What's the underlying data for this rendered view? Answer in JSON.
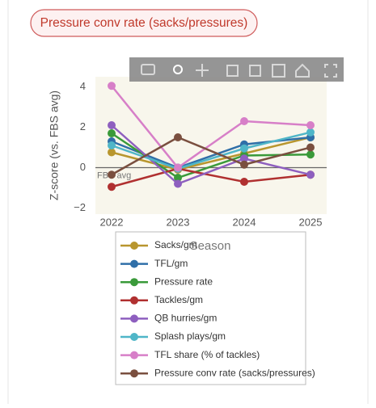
{
  "filter_button": {
    "label": "Pressure conv rate (sacks/pressures)"
  },
  "chart_data": {
    "type": "line",
    "y_label": "Z-score (vs. FBS avg)",
    "x_label": "Season",
    "annotation": "FBS avg",
    "categories": [
      "2022",
      "2023",
      "2024",
      "2025"
    ],
    "ylim": [
      -2.3,
      4.5
    ],
    "yticks": [
      {
        "value": -2,
        "label": "−2"
      },
      0,
      2,
      4
    ],
    "grid": false,
    "zero_line": true,
    "legend": "bottom",
    "series": [
      {
        "name": "Sacks/gm",
        "color": "#b8962e",
        "values": [
          0.76,
          -0.1,
          0.7,
          1.5
        ]
      },
      {
        "name": "TFL/gm",
        "color": "#2f6fa8",
        "values": [
          1.3,
          0,
          1.15,
          1.5
        ]
      },
      {
        "name": "Pressure rate",
        "color": "#3a9a3a",
        "values": [
          1.7,
          -0.5,
          0.6,
          0.65
        ]
      },
      {
        "name": "Tackles/gm",
        "color": "#b03030",
        "values": [
          -0.95,
          -0.05,
          -0.7,
          -0.35
        ]
      },
      {
        "name": "QB hurries/gm",
        "color": "#8e5fbf",
        "values": [
          2.1,
          -0.8,
          0.45,
          -0.35
        ]
      },
      {
        "name": "Splash plays/gm",
        "color": "#4fb6c8",
        "values": [
          1.1,
          -0.05,
          0.95,
          1.75
        ]
      },
      {
        "name": "TFL share (% of tackles)",
        "color": "#d77fc8",
        "values": [
          4.05,
          0,
          2.3,
          2.1
        ]
      },
      {
        "name": "Pressure conv rate (sacks/pressures)",
        "color": "#7a4f3f",
        "values": [
          -0.35,
          1.5,
          0.15,
          1.0
        ]
      }
    ]
  }
}
